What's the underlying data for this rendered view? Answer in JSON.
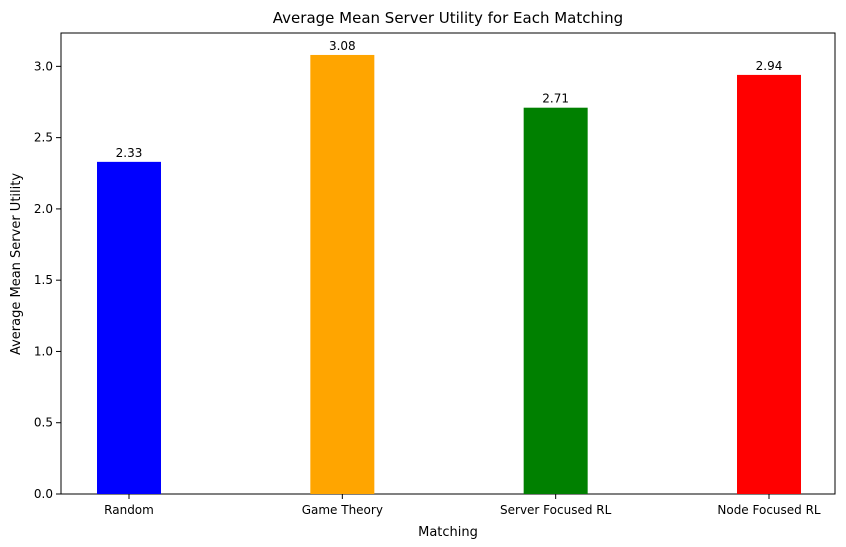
{
  "chart_data": {
    "type": "bar",
    "title": "Average Mean Server Utility for Each Matching",
    "xlabel": "Matching",
    "ylabel": "Average Mean Server Utility",
    "categories": [
      "Random",
      "Game Theory",
      "Server Focused RL",
      "Node Focused RL"
    ],
    "values": [
      2.33,
      3.08,
      2.71,
      2.94
    ],
    "value_labels": [
      "2.33",
      "3.08",
      "2.71",
      "2.94"
    ],
    "colors": [
      "#0000ff",
      "#ffa500",
      "#008000",
      "#ff0000"
    ],
    "ylim": [
      0,
      3.234
    ],
    "yticks": [
      0.0,
      0.5,
      1.0,
      1.5,
      2.0,
      2.5,
      3.0
    ],
    "ytick_labels": [
      "0.0",
      "0.5",
      "1.0",
      "1.5",
      "2.0",
      "2.5",
      "3.0"
    ],
    "grid": false,
    "legend": "none"
  }
}
